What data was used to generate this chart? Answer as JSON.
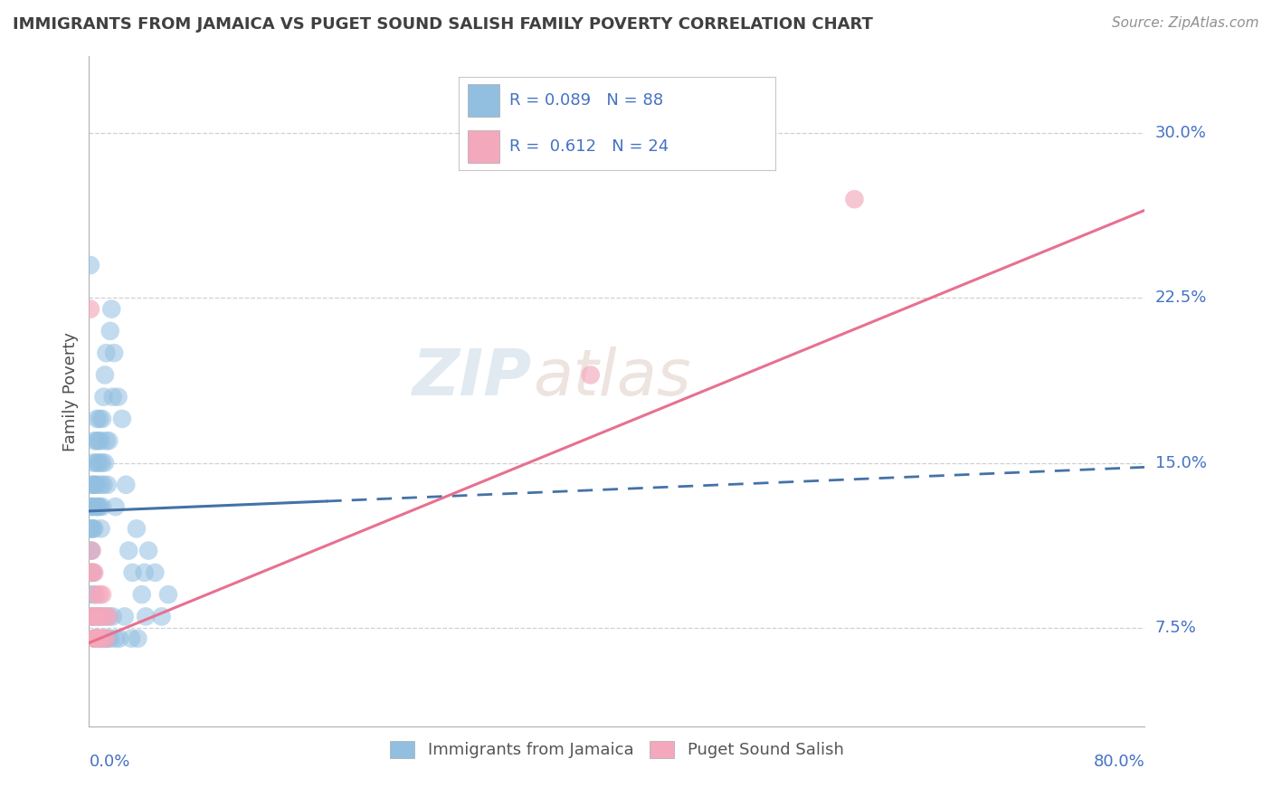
{
  "title": "IMMIGRANTS FROM JAMAICA VS PUGET SOUND SALISH FAMILY POVERTY CORRELATION CHART",
  "source": "Source: ZipAtlas.com",
  "ylabel": "Family Poverty",
  "yticks": [
    0.075,
    0.15,
    0.225,
    0.3
  ],
  "ytick_labels": [
    "7.5%",
    "15.0%",
    "22.5%",
    "30.0%"
  ],
  "xlim": [
    0.0,
    0.8
  ],
  "ylim": [
    0.03,
    0.335
  ],
  "blue_color": "#92bfe0",
  "pink_color": "#f4a8bc",
  "blue_line_color": "#4472a8",
  "pink_line_color": "#e87090",
  "legend_text_color": "#4472c4",
  "tick_label_color": "#4472c4",
  "title_color": "#404040",
  "watermark_zip_color": "#c8d8e8",
  "watermark_atlas_color": "#d8c8c0",
  "ylabel_color": "#505050",
  "grid_color": "#d0d0d0",
  "legend_border_color": "#c8c8c8",
  "blue_scatter_x": [
    0.001,
    0.001,
    0.001,
    0.001,
    0.002,
    0.002,
    0.002,
    0.002,
    0.003,
    0.003,
    0.003,
    0.003,
    0.004,
    0.004,
    0.004,
    0.005,
    0.005,
    0.005,
    0.006,
    0.006,
    0.006,
    0.006,
    0.007,
    0.007,
    0.007,
    0.008,
    0.008,
    0.008,
    0.009,
    0.009,
    0.009,
    0.01,
    0.01,
    0.01,
    0.011,
    0.011,
    0.012,
    0.012,
    0.013,
    0.013,
    0.014,
    0.015,
    0.016,
    0.017,
    0.018,
    0.019,
    0.02,
    0.022,
    0.025,
    0.028,
    0.03,
    0.033,
    0.036,
    0.04,
    0.042,
    0.045,
    0.05,
    0.055,
    0.06,
    0.001,
    0.001,
    0.002,
    0.002,
    0.003,
    0.003,
    0.004,
    0.004,
    0.005,
    0.005,
    0.006,
    0.007,
    0.008,
    0.009,
    0.01,
    0.011,
    0.012,
    0.013,
    0.014,
    0.015,
    0.016,
    0.018,
    0.02,
    0.023,
    0.027,
    0.032,
    0.037,
    0.043
  ],
  "blue_scatter_y": [
    0.13,
    0.12,
    0.11,
    0.1,
    0.14,
    0.13,
    0.12,
    0.11,
    0.15,
    0.14,
    0.13,
    0.12,
    0.16,
    0.14,
    0.12,
    0.15,
    0.14,
    0.13,
    0.17,
    0.16,
    0.14,
    0.13,
    0.16,
    0.15,
    0.13,
    0.17,
    0.15,
    0.13,
    0.16,
    0.14,
    0.12,
    0.17,
    0.15,
    0.13,
    0.18,
    0.14,
    0.19,
    0.15,
    0.2,
    0.16,
    0.14,
    0.16,
    0.21,
    0.22,
    0.18,
    0.2,
    0.13,
    0.18,
    0.17,
    0.14,
    0.11,
    0.1,
    0.12,
    0.09,
    0.1,
    0.11,
    0.1,
    0.08,
    0.09,
    0.24,
    0.09,
    0.1,
    0.08,
    0.1,
    0.08,
    0.09,
    0.07,
    0.08,
    0.07,
    0.07,
    0.07,
    0.08,
    0.08,
    0.07,
    0.07,
    0.08,
    0.07,
    0.07,
    0.08,
    0.07,
    0.08,
    0.07,
    0.07,
    0.08,
    0.07,
    0.07,
    0.08
  ],
  "pink_scatter_x": [
    0.001,
    0.001,
    0.002,
    0.002,
    0.003,
    0.003,
    0.004,
    0.004,
    0.005,
    0.005,
    0.006,
    0.006,
    0.007,
    0.007,
    0.008,
    0.008,
    0.009,
    0.01,
    0.011,
    0.012,
    0.013,
    0.015,
    0.58,
    0.38
  ],
  "pink_scatter_y": [
    0.22,
    0.1,
    0.11,
    0.08,
    0.1,
    0.08,
    0.1,
    0.07,
    0.09,
    0.07,
    0.08,
    0.07,
    0.08,
    0.07,
    0.09,
    0.07,
    0.08,
    0.09,
    0.07,
    0.08,
    0.07,
    0.08,
    0.27,
    0.19
  ],
  "blue_line": [
    [
      0.0,
      0.8
    ],
    [
      0.128,
      0.148
    ]
  ],
  "blue_line_solid_end": 0.18,
  "blue_line_dash_start": 0.18,
  "pink_line": [
    [
      0.0,
      0.8
    ],
    [
      0.068,
      0.265
    ]
  ]
}
